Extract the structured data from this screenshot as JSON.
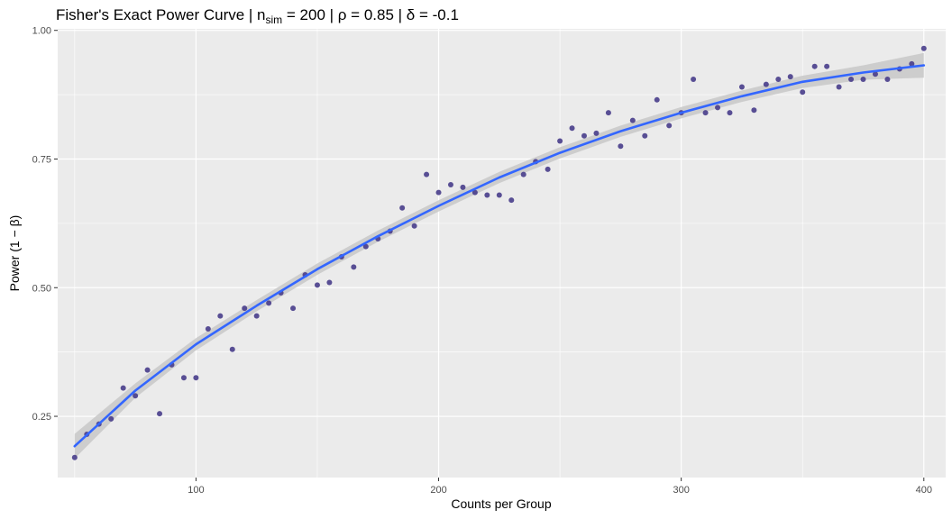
{
  "chart_data": {
    "type": "scatter",
    "title": {
      "before_sub": "Fisher's Exact Power Curve | n",
      "sub": "sim",
      "after_sub": " = 200 | ρ = 0.85 | δ = -0.1"
    },
    "xlabel": "Counts per Group",
    "ylabel": "Power (1 − β)",
    "xlim": [
      43,
      409
    ],
    "ylim": [
      0.131,
      1.003
    ],
    "x_ticks": [
      100,
      200,
      300,
      400
    ],
    "x_tick_labels": [
      "100",
      "200",
      "300",
      "400"
    ],
    "y_ticks": [
      0.25,
      0.5,
      0.75,
      1.0
    ],
    "y_tick_labels": [
      "0.25",
      "0.50",
      "0.75",
      "1.00"
    ],
    "grid": true,
    "legend": "none",
    "colors": {
      "panel_bg": "#ebebeb",
      "grid_major": "#ffffff",
      "points": "#483d8b",
      "smooth_line": "#3366ff",
      "ribbon": "#c8c8c8"
    },
    "series": [
      {
        "kind": "points",
        "x": [
          50,
          55,
          60,
          65,
          70,
          75,
          80,
          85,
          90,
          95,
          100,
          105,
          110,
          115,
          120,
          125,
          130,
          135,
          140,
          145,
          150,
          155,
          160,
          165,
          170,
          175,
          180,
          185,
          190,
          195,
          200,
          205,
          210,
          215,
          220,
          225,
          230,
          235,
          240,
          245,
          250,
          255,
          260,
          265,
          270,
          275,
          280,
          285,
          290,
          295,
          300,
          305,
          310,
          315,
          320,
          325,
          330,
          335,
          340,
          345,
          350,
          355,
          360,
          365,
          370,
          375,
          380,
          385,
          390,
          395,
          400
        ],
        "y": [
          0.17,
          0.215,
          0.235,
          0.245,
          0.305,
          0.29,
          0.34,
          0.255,
          0.35,
          0.325,
          0.325,
          0.42,
          0.445,
          0.38,
          0.46,
          0.445,
          0.47,
          0.49,
          0.46,
          0.525,
          0.505,
          0.51,
          0.56,
          0.54,
          0.58,
          0.595,
          0.61,
          0.655,
          0.62,
          0.72,
          0.685,
          0.7,
          0.695,
          0.685,
          0.68,
          0.68,
          0.67,
          0.72,
          0.745,
          0.73,
          0.785,
          0.81,
          0.795,
          0.8,
          0.84,
          0.775,
          0.825,
          0.795,
          0.865,
          0.815,
          0.84,
          0.905,
          0.84,
          0.85,
          0.84,
          0.89,
          0.845,
          0.895,
          0.905,
          0.91,
          0.88,
          0.93,
          0.93,
          0.89,
          0.905,
          0.905,
          0.915,
          0.905,
          0.925,
          0.935,
          0.965
        ]
      },
      {
        "kind": "smooth",
        "x": [
          50,
          75,
          100,
          125,
          150,
          175,
          200,
          225,
          250,
          275,
          300,
          325,
          350,
          375,
          400
        ],
        "y": [
          0.192,
          0.3,
          0.39,
          0.465,
          0.536,
          0.6,
          0.659,
          0.714,
          0.762,
          0.804,
          0.84,
          0.872,
          0.9,
          0.918,
          0.932
        ],
        "band": [
          0.024,
          0.014,
          0.012,
          0.011,
          0.011,
          0.011,
          0.011,
          0.011,
          0.011,
          0.011,
          0.011,
          0.011,
          0.012,
          0.014,
          0.024
        ]
      }
    ]
  }
}
